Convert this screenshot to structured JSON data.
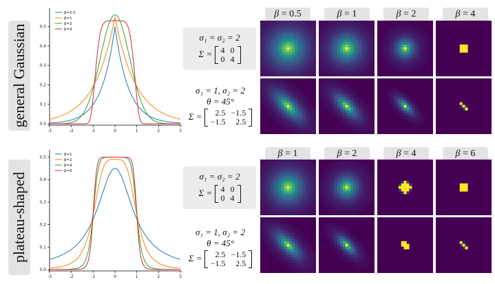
{
  "rows": [
    {
      "label": "general Gaussian",
      "chart_data": {
        "type": "line",
        "x": [
          -3,
          3
        ],
        "xticks": [
          -3,
          -2,
          -1,
          0,
          1,
          2,
          3
        ],
        "yticks": [
          0.0,
          0.1,
          0.2,
          0.3,
          0.4,
          0.5
        ],
        "ylim": [
          0,
          0.58
        ],
        "legend_position": "top-left",
        "series": [
          {
            "name": "β=0.5",
            "beta": 0.5,
            "peak": 0.5,
            "color": "#1f77b4"
          },
          {
            "name": "β=1",
            "beta": 1,
            "peak": 0.55,
            "color": "#ff7f0e"
          },
          {
            "name": "β=2",
            "beta": 2,
            "peak": 0.56,
            "color": "#2ca02c"
          },
          {
            "name": "β=4",
            "beta": 4,
            "peak": 0.53,
            "color": "#d62728"
          }
        ]
      },
      "eq_iso": {
        "sigma": "σ₁ = σ₂ = 2",
        "sigma_label": "Σ =",
        "matrix": [
          [
            "4",
            "0"
          ],
          [
            "0",
            "4"
          ]
        ]
      },
      "eq_aniso": {
        "sigma": "σ₁ = 1, σ₂ = 2",
        "theta": "θ = 45°",
        "sigma_label": "Σ =",
        "matrix": [
          [
            "2.5",
            "−1.5"
          ],
          [
            "−1.5",
            "2.5"
          ]
        ]
      },
      "beta_labels": [
        "β = 0.5",
        "β = 1",
        "β = 2",
        "β = 4"
      ],
      "kernel_sizes": [
        32,
        26,
        17,
        11
      ]
    },
    {
      "label": "plateau-shaped",
      "chart_data": {
        "type": "line",
        "x": [
          -3,
          3
        ],
        "xticks": [
          -3,
          -2,
          -1,
          0,
          1,
          2,
          3
        ],
        "yticks": [
          0.0,
          0.1,
          0.2,
          0.3,
          0.4,
          0.5
        ],
        "ylim": [
          0,
          0.52
        ],
        "legend_position": "top-left",
        "series": [
          {
            "name": "β=1",
            "beta": 1,
            "peak": 0.45,
            "color": "#1f77b4"
          },
          {
            "name": "β=2",
            "beta": 2,
            "peak": 0.49,
            "color": "#ff7f0e"
          },
          {
            "name": "β=4",
            "beta": 4,
            "peak": 0.5,
            "color": "#2ca02c"
          },
          {
            "name": "β=6",
            "beta": 6,
            "peak": 0.5,
            "color": "#d62728"
          }
        ]
      },
      "eq_iso": {
        "sigma": "σ₁ = σ₂ = 2",
        "sigma_label": "Σ =",
        "matrix": [
          [
            "4",
            "0"
          ],
          [
            "0",
            "4"
          ]
        ]
      },
      "eq_aniso": {
        "sigma": "σ₁ = 1, σ₂ = 2",
        "theta": "θ = 45°",
        "sigma_label": "Σ =",
        "matrix": [
          [
            "2.5",
            "−1.5"
          ],
          [
            "−1.5",
            "2.5"
          ]
        ]
      },
      "beta_labels": [
        "β = 1",
        "β = 2",
        "β = 4",
        "β = 6"
      ],
      "kernel_sizes": [
        28,
        20,
        14,
        11
      ]
    }
  ],
  "colors": {
    "label_bg": "#e3e3e3",
    "eq_bg": "#ececec",
    "viridis_dark": "#440154",
    "viridis_bright": "#fde725"
  }
}
